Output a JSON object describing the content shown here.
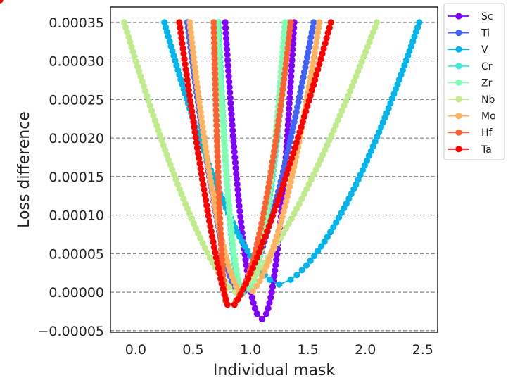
{
  "chart_data": {
    "type": "line",
    "xlabel": "Individual mask",
    "ylabel": "Loss difference",
    "xlim": [
      -0.22,
      2.63
    ],
    "ylim": [
      -5.2e-05,
      0.00037
    ],
    "xticks": [
      0.0,
      0.5,
      1.0,
      1.5,
      2.0,
      2.5
    ],
    "xtick_labels": [
      "0.0",
      "0.5",
      "1.0",
      "1.5",
      "2.0",
      "2.5"
    ],
    "yticks": [
      -5e-05,
      0.0,
      5e-05,
      0.0001,
      0.00015,
      0.0002,
      0.00025,
      0.0003,
      0.00035
    ],
    "ytick_labels": [
      "−0.00005",
      "0.00000",
      "0.00005",
      "0.00010",
      "0.00015",
      "0.00020",
      "0.00025",
      "0.00030",
      "0.00035"
    ],
    "grid": "horizontal dashed",
    "legend_position": "outside top-right",
    "series": [
      {
        "name": "Sc",
        "color": "#8000ff",
        "min_x": 1.1,
        "min_y": -3.5e-05,
        "left_x": 0.78,
        "right_x": 1.38,
        "curvature": 2.0
      },
      {
        "name": "Ti",
        "color": "#4062fa",
        "min_x": 0.9,
        "min_y": -5e-06,
        "left_x": 0.45,
        "right_x": 1.55,
        "curvature": 1.5
      },
      {
        "name": "V",
        "color": "#00b5eb",
        "min_x": 1.25,
        "min_y": 1e-05,
        "left_x": 0.25,
        "right_x": 2.47,
        "curvature": 1.6
      },
      {
        "name": "Cr",
        "color": "#40ecd4",
        "min_x": 0.93,
        "min_y": -2e-06,
        "left_x": 0.72,
        "right_x": 1.33,
        "curvature": 2.0
      },
      {
        "name": "Zr",
        "color": "#80ffb4",
        "min_x": 0.95,
        "min_y": -3e-06,
        "left_x": 0.71,
        "right_x": 1.3,
        "curvature": 2.0
      },
      {
        "name": "Nb",
        "color": "#c0eb8d",
        "min_x": 0.87,
        "min_y": 0.0,
        "left_x": -0.1,
        "right_x": 2.1,
        "curvature": 1.4
      },
      {
        "name": "Mo",
        "color": "#ffb360",
        "min_x": 0.95,
        "min_y": -5e-06,
        "left_x": 0.47,
        "right_x": 1.6,
        "curvature": 1.8
      },
      {
        "name": "Hf",
        "color": "#ff6230",
        "min_x": 0.8,
        "min_y": -1.8e-05,
        "left_x": 0.68,
        "right_x": 1.35,
        "curvature": 2.0
      },
      {
        "name": "Ta",
        "color": "#ff0000",
        "min_x": 0.82,
        "min_y": -2.3e-05,
        "left_x": 0.38,
        "right_x": 1.7,
        "curvature": 1.3
      }
    ]
  }
}
